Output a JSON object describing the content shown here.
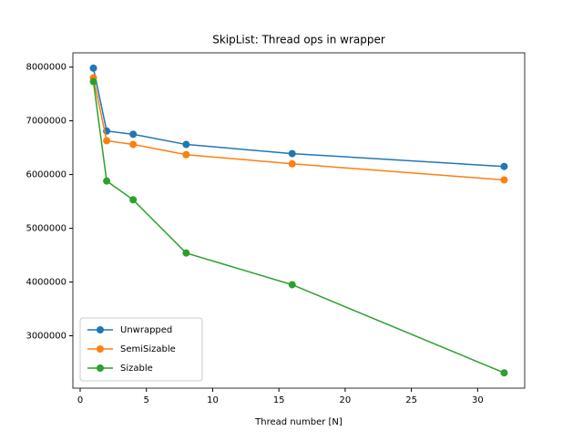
{
  "chart_data": {
    "type": "line",
    "title": "SkipList: Thread ops in wrapper",
    "x_label": "Thread number [N]",
    "x": [
      1,
      2,
      4,
      8,
      16,
      32
    ],
    "series": [
      {
        "name": "Unwrapped",
        "color": "#1f77b4",
        "values": [
          7980000,
          6810000,
          6750000,
          6560000,
          6390000,
          6150000
        ]
      },
      {
        "name": "SemiSizable",
        "color": "#ff7f0e",
        "values": [
          7800000,
          6630000,
          6560000,
          6370000,
          6200000,
          5900000
        ]
      },
      {
        "name": "Sizable",
        "color": "#2ca02c",
        "values": [
          7730000,
          5880000,
          5530000,
          4540000,
          3950000,
          2310000
        ]
      }
    ],
    "xlim": [
      -0.55,
      33.55
    ],
    "ylim": [
      2025000,
      8265000
    ],
    "xticks": [
      0,
      5,
      10,
      15,
      20,
      25,
      30
    ],
    "yticks": [
      3000000,
      4000000,
      5000000,
      6000000,
      7000000,
      8000000
    ],
    "legend": "lower left",
    "grid": false
  }
}
